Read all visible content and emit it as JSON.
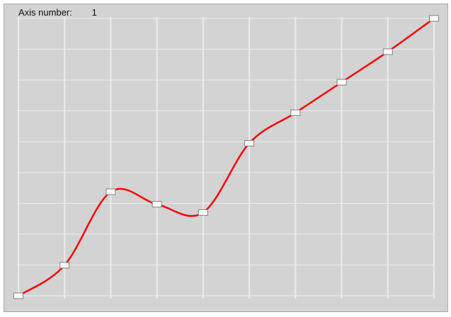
{
  "header": {
    "axis_label": "Axis number:",
    "axis_value": "1"
  },
  "colors": {
    "panel_bg": "#d3d3d3",
    "grid": "#ececec",
    "curve": "#ff0000",
    "handle_fill": "#ffffff",
    "handle_stroke": "#808080"
  },
  "icons": {
    "handle": "control-point-handle-icon"
  },
  "chart_data": {
    "type": "line",
    "x": [
      0,
      1,
      2,
      3,
      4,
      5,
      6,
      7,
      8,
      9
    ],
    "values": [
      0.0,
      0.11,
      0.375,
      0.33,
      0.3,
      0.55,
      0.66,
      0.77,
      0.88,
      1.0
    ],
    "xlim": [
      0,
      9
    ],
    "ylim": [
      0,
      1
    ],
    "x_gridlines": 9,
    "y_gridlines": 9,
    "grid": true
  }
}
